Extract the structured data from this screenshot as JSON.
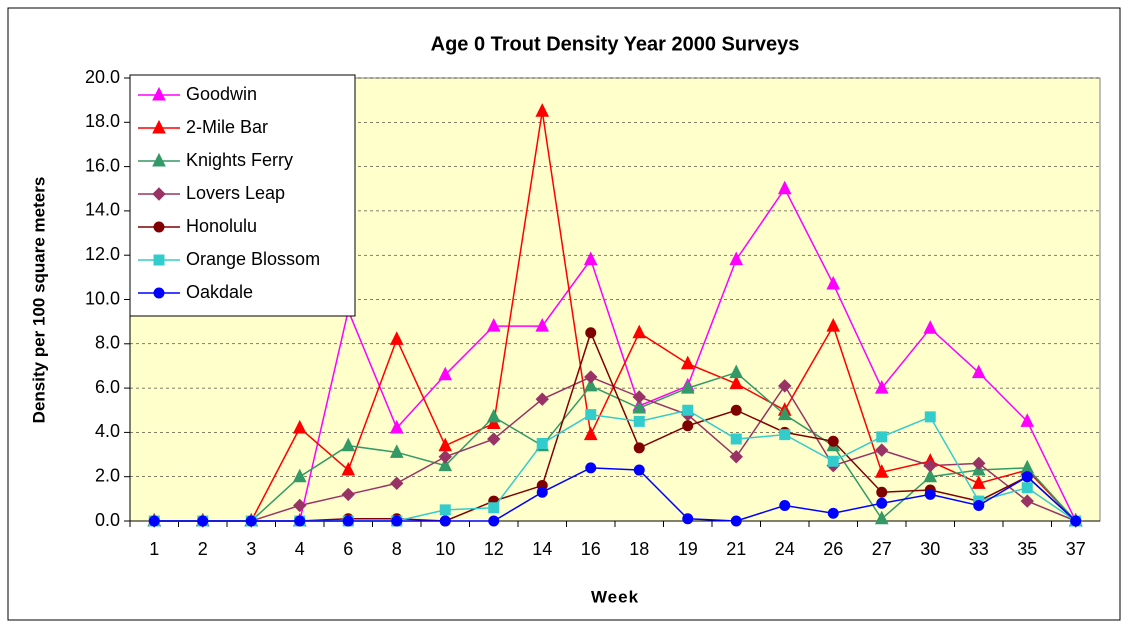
{
  "chart_data": {
    "type": "line",
    "title": "Age 0 Trout Density Year 2000 Surveys",
    "x_label": "Week",
    "y_label": "Density per 100 square meters",
    "categories": [
      "1",
      "2",
      "3",
      "4",
      "6",
      "8",
      "10",
      "12",
      "14",
      "16",
      "18",
      "19",
      "21",
      "24",
      "26",
      "27",
      "30",
      "33",
      "35",
      "37"
    ],
    "ylim": [
      0,
      20
    ],
    "yticks": [
      {
        "value": 0,
        "label": "0.0"
      },
      {
        "value": 2,
        "label": "2.0"
      },
      {
        "value": 4,
        "label": "4.0"
      },
      {
        "value": 6,
        "label": "6.0"
      },
      {
        "value": 8,
        "label": "8.0"
      },
      {
        "value": 10,
        "label": "10.0"
      },
      {
        "value": 12,
        "label": "12.0"
      },
      {
        "value": 14,
        "label": "14.0"
      },
      {
        "value": 16,
        "label": "16.0"
      },
      {
        "value": 18,
        "label": "18.0"
      },
      {
        "value": 20,
        "label": "20.0"
      }
    ],
    "grid": true,
    "legend": "top-left",
    "background": "#ffffcc",
    "series": [
      {
        "name": "Goodwin",
        "color": "#ff00ff",
        "marker": "triangle",
        "values": [
          0,
          0,
          0,
          0,
          9.5,
          4.2,
          6.6,
          8.8,
          8.8,
          11.8,
          5.2,
          6.1,
          11.8,
          15.0,
          10.7,
          6.0,
          8.7,
          6.7,
          4.5,
          0
        ]
      },
      {
        "name": "2-Mile Bar",
        "color": "#ff0000",
        "marker": "triangle",
        "values": [
          0,
          0,
          0,
          4.2,
          2.3,
          8.2,
          3.4,
          4.4,
          18.5,
          3.9,
          8.5,
          7.1,
          6.2,
          5.0,
          8.8,
          2.2,
          2.7,
          1.7,
          2.3,
          0
        ]
      },
      {
        "name": "Knights Ferry",
        "color": "#339966",
        "marker": "triangle",
        "values": [
          0,
          0,
          0,
          2.0,
          3.4,
          3.1,
          2.5,
          4.7,
          3.4,
          6.1,
          5.1,
          6.0,
          6.7,
          4.8,
          3.4,
          0.1,
          2.0,
          2.3,
          2.4,
          0
        ]
      },
      {
        "name": "Lovers Leap",
        "color": "#993366",
        "marker": "diamond",
        "values": [
          0,
          0,
          0,
          0.7,
          1.2,
          1.7,
          2.9,
          3.7,
          5.5,
          6.5,
          5.6,
          4.8,
          2.9,
          6.1,
          2.5,
          3.2,
          2.5,
          2.6,
          0.9,
          0
        ]
      },
      {
        "name": "Honolulu",
        "color": "#800000",
        "marker": "circle",
        "values": [
          0,
          0,
          0,
          0,
          0.1,
          0.1,
          0,
          0.9,
          1.6,
          8.5,
          3.3,
          4.3,
          5.0,
          4.0,
          3.6,
          1.3,
          1.4,
          0.9,
          2.0,
          0
        ]
      },
      {
        "name": "Orange Blossom",
        "color": "#33cccc",
        "marker": "square",
        "values": [
          0,
          0,
          0,
          0,
          0,
          0,
          0.5,
          0.6,
          3.5,
          4.8,
          4.5,
          5.0,
          3.7,
          3.9,
          2.7,
          3.8,
          4.7,
          0.9,
          1.5,
          0
        ]
      },
      {
        "name": "Oakdale",
        "color": "#0000ff",
        "marker": "circle",
        "values": [
          0,
          0,
          0,
          0,
          0,
          0,
          0,
          0,
          1.3,
          2.4,
          2.3,
          0.1,
          0,
          0.7,
          0.35,
          0.8,
          1.2,
          0.7,
          2.0,
          0
        ]
      }
    ]
  }
}
